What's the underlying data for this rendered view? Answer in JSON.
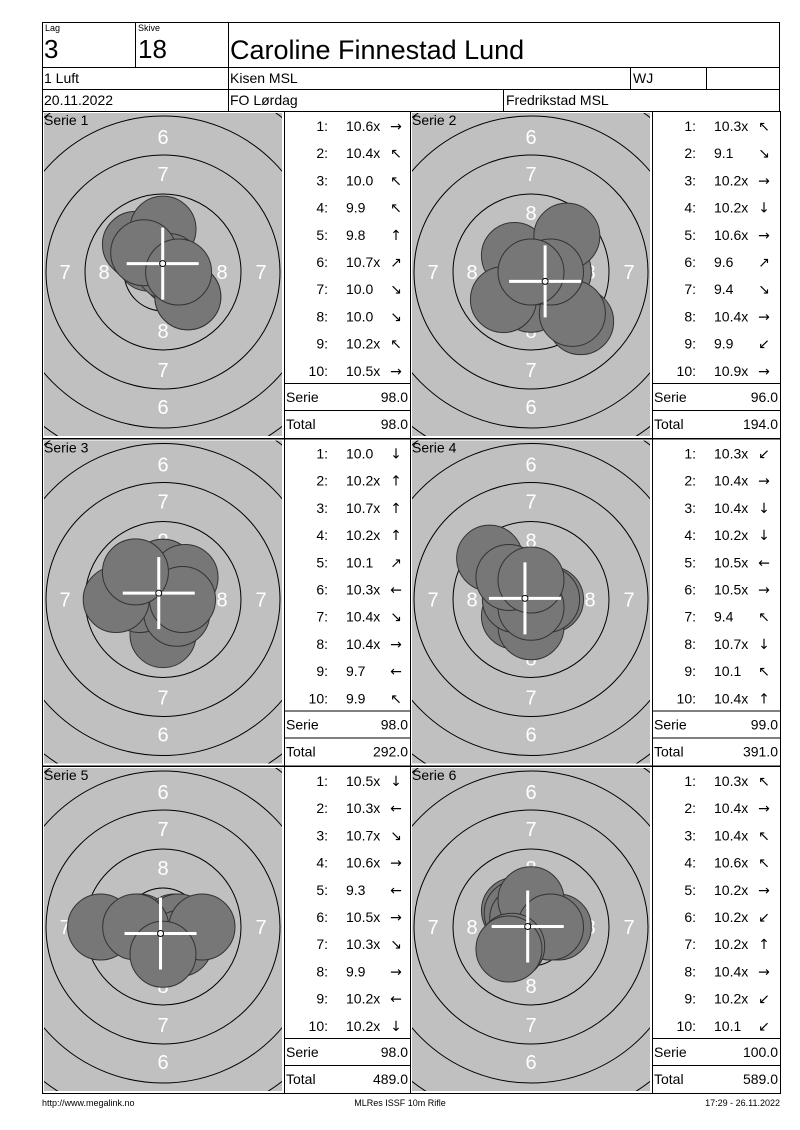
{
  "header": {
    "lag_label": "Lag",
    "lag": "3",
    "skive_label": "Skive",
    "skive": "18",
    "name": "Caroline Finnestad Lund",
    "class": "1 Luft",
    "club": "Kisen MSL",
    "class_code": "WJ",
    "date": "20.11.2022",
    "event": "FO Lørdag",
    "location": "Fredrikstad MSL"
  },
  "target": {
    "ring_labels": [
      "6",
      "7",
      "8"
    ]
  },
  "series": [
    {
      "title": "Serie 1",
      "shots": [
        {
          "n": "1:",
          "score": "10.6x",
          "arrow": "→"
        },
        {
          "n": "2:",
          "score": "10.4x",
          "arrow": "↖"
        },
        {
          "n": "3:",
          "score": "10.0",
          "arrow": "↖"
        },
        {
          "n": "4:",
          "score": "9.9",
          "arrow": "↖"
        },
        {
          "n": "5:",
          "score": "9.8",
          "arrow": "↑"
        },
        {
          "n": "6:",
          "score": "10.7x",
          "arrow": "↗"
        },
        {
          "n": "7:",
          "score": "10.0",
          "arrow": "↘"
        },
        {
          "n": "8:",
          "score": "10.0",
          "arrow": "↘"
        },
        {
          "n": "9:",
          "score": "10.2x",
          "arrow": "↖"
        },
        {
          "n": "10:",
          "score": "10.5x",
          "arrow": "→"
        }
      ],
      "serie_label": "Serie",
      "serie": "98.0",
      "total_label": "Total",
      "total": "98.0"
    },
    {
      "title": "Serie 2",
      "shots": [
        {
          "n": "1:",
          "score": "10.3x",
          "arrow": "↖"
        },
        {
          "n": "2:",
          "score": "9.1",
          "arrow": "↘"
        },
        {
          "n": "3:",
          "score": "10.2x",
          "arrow": "→"
        },
        {
          "n": "4:",
          "score": "10.2x",
          "arrow": "↓"
        },
        {
          "n": "5:",
          "score": "10.6x",
          "arrow": "→"
        },
        {
          "n": "6:",
          "score": "9.6",
          "arrow": "↗"
        },
        {
          "n": "7:",
          "score": "9.4",
          "arrow": "↘"
        },
        {
          "n": "8:",
          "score": "10.4x",
          "arrow": "→"
        },
        {
          "n": "9:",
          "score": "9.9",
          "arrow": "↙"
        },
        {
          "n": "10:",
          "score": "10.9x",
          "arrow": "→"
        }
      ],
      "serie_label": "Serie",
      "serie": "96.0",
      "total_label": "Total",
      "total": "194.0"
    },
    {
      "title": "Serie 3",
      "shots": [
        {
          "n": "1:",
          "score": "10.0",
          "arrow": "↓"
        },
        {
          "n": "2:",
          "score": "10.2x",
          "arrow": "↑"
        },
        {
          "n": "3:",
          "score": "10.7x",
          "arrow": "↑"
        },
        {
          "n": "4:",
          "score": "10.2x",
          "arrow": "↑"
        },
        {
          "n": "5:",
          "score": "10.1",
          "arrow": "↗"
        },
        {
          "n": "6:",
          "score": "10.3x",
          "arrow": "←"
        },
        {
          "n": "7:",
          "score": "10.4x",
          "arrow": "↘"
        },
        {
          "n": "8:",
          "score": "10.4x",
          "arrow": "→"
        },
        {
          "n": "9:",
          "score": "9.7",
          "arrow": "←"
        },
        {
          "n": "10:",
          "score": "9.9",
          "arrow": "↖"
        }
      ],
      "serie_label": "Serie",
      "serie": "98.0",
      "total_label": "Total",
      "total": "292.0"
    },
    {
      "title": "Serie 4",
      "shots": [
        {
          "n": "1:",
          "score": "10.3x",
          "arrow": "↙"
        },
        {
          "n": "2:",
          "score": "10.4x",
          "arrow": "→"
        },
        {
          "n": "3:",
          "score": "10.4x",
          "arrow": "↓"
        },
        {
          "n": "4:",
          "score": "10.2x",
          "arrow": "↓"
        },
        {
          "n": "5:",
          "score": "10.5x",
          "arrow": "←"
        },
        {
          "n": "6:",
          "score": "10.5x",
          "arrow": "→"
        },
        {
          "n": "7:",
          "score": "9.4",
          "arrow": "↖"
        },
        {
          "n": "8:",
          "score": "10.7x",
          "arrow": "↓"
        },
        {
          "n": "9:",
          "score": "10.1",
          "arrow": "↖"
        },
        {
          "n": "10:",
          "score": "10.4x",
          "arrow": "↑"
        }
      ],
      "serie_label": "Serie",
      "serie": "99.0",
      "total_label": "Total",
      "total": "391.0"
    },
    {
      "title": "Serie 5",
      "shots": [
        {
          "n": "1:",
          "score": "10.5x",
          "arrow": "↓"
        },
        {
          "n": "2:",
          "score": "10.3x",
          "arrow": "←"
        },
        {
          "n": "3:",
          "score": "10.7x",
          "arrow": "↘"
        },
        {
          "n": "4:",
          "score": "10.6x",
          "arrow": "→"
        },
        {
          "n": "5:",
          "score": "9.3",
          "arrow": "←"
        },
        {
          "n": "6:",
          "score": "10.5x",
          "arrow": "→"
        },
        {
          "n": "7:",
          "score": "10.3x",
          "arrow": "↘"
        },
        {
          "n": "8:",
          "score": "9.9",
          "arrow": "→"
        },
        {
          "n": "9:",
          "score": "10.2x",
          "arrow": "←"
        },
        {
          "n": "10:",
          "score": "10.2x",
          "arrow": "↓"
        }
      ],
      "serie_label": "Serie",
      "serie": "98.0",
      "total_label": "Total",
      "total": "489.0"
    },
    {
      "title": "Serie 6",
      "shots": [
        {
          "n": "1:",
          "score": "10.3x",
          "arrow": "↖"
        },
        {
          "n": "2:",
          "score": "10.4x",
          "arrow": "→"
        },
        {
          "n": "3:",
          "score": "10.4x",
          "arrow": "↖"
        },
        {
          "n": "4:",
          "score": "10.6x",
          "arrow": "↖"
        },
        {
          "n": "5:",
          "score": "10.2x",
          "arrow": "→"
        },
        {
          "n": "6:",
          "score": "10.2x",
          "arrow": "↙"
        },
        {
          "n": "7:",
          "score": "10.2x",
          "arrow": "↑"
        },
        {
          "n": "8:",
          "score": "10.4x",
          "arrow": "→"
        },
        {
          "n": "9:",
          "score": "10.2x",
          "arrow": "↙"
        },
        {
          "n": "10:",
          "score": "10.1",
          "arrow": "↙"
        }
      ],
      "serie_label": "Serie",
      "serie": "100.0",
      "total_label": "Total",
      "total": "589.0"
    }
  ],
  "footer": {
    "url": "http://www.megalink.no",
    "program": "MLRes ISSF 10m Rifle",
    "timestamp": "17:29 - 26.11.2022"
  }
}
